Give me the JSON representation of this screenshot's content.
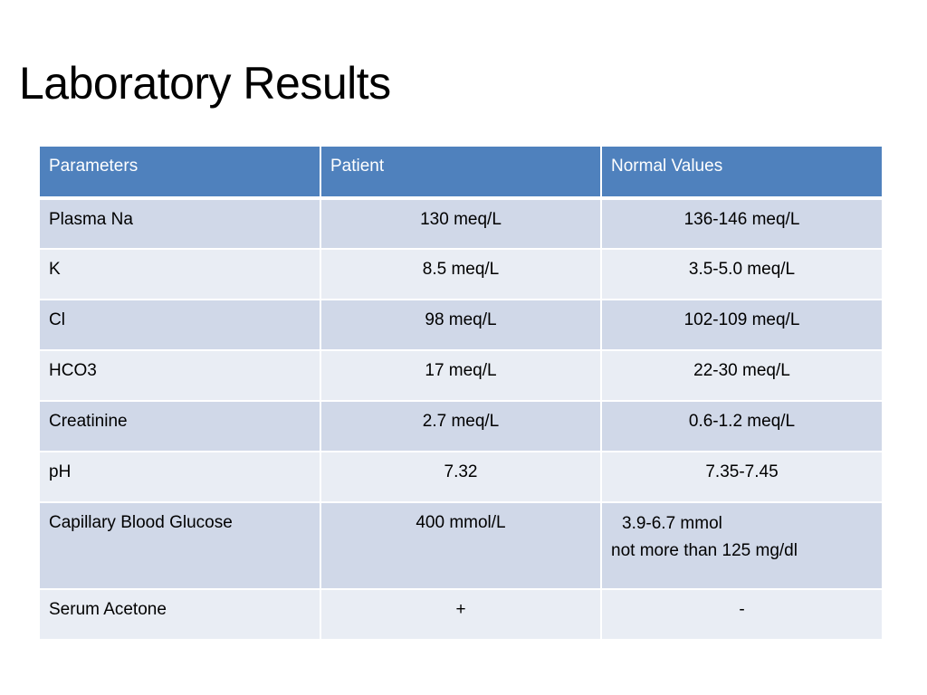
{
  "title": "Laboratory Results",
  "table": {
    "headers": [
      "Parameters",
      "Patient",
      "Normal Values"
    ],
    "rows": [
      {
        "parameter": "Plasma Na",
        "patient": "130 meq/L",
        "normal": "136-146 meq/L"
      },
      {
        "parameter": "K",
        "patient": "8.5 meq/L",
        "normal": "3.5-5.0 meq/L"
      },
      {
        "parameter": "Cl",
        "patient": "98 meq/L",
        "normal": "102-109 meq/L"
      },
      {
        "parameter": "HCO3",
        "patient": "17 meq/L",
        "normal": "22-30 meq/L"
      },
      {
        "parameter": "Creatinine",
        "patient": "2.7 meq/L",
        "normal": "0.6-1.2 meq/L"
      },
      {
        "parameter": "pH",
        "patient": "7.32",
        "normal": "7.35-7.45"
      },
      {
        "parameter": "Capillary Blood Glucose",
        "patient": "400 mmol/L",
        "normal_line1": "3.9-6.7 mmol",
        "normal_line2": "not more than 125 mg/dl"
      },
      {
        "parameter": "Serum Acetone",
        "patient": "+",
        "normal": "-"
      }
    ]
  },
  "colors": {
    "header_bg": "#4f81bd",
    "row_odd_bg": "#d0d8e8",
    "row_even_bg": "#e9edf4"
  }
}
